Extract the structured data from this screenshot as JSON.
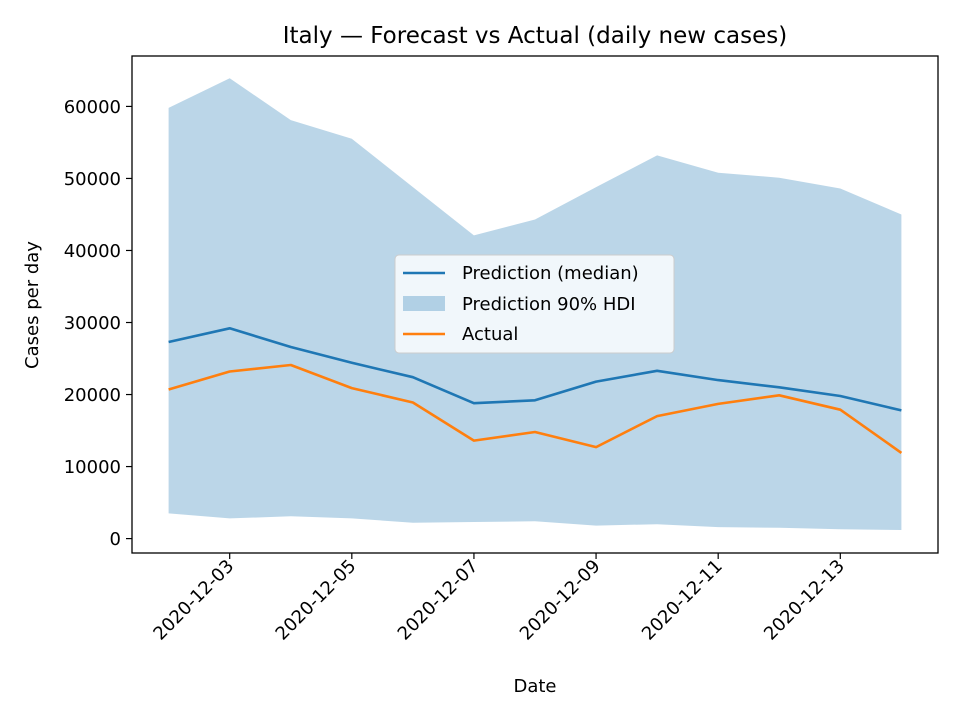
{
  "chart_data": {
    "type": "line",
    "title": "Italy — Forecast vs Actual (daily new cases)",
    "xlabel": "Date",
    "ylabel": "Cases per day",
    "x": [
      "2020-12-02",
      "2020-12-03",
      "2020-12-04",
      "2020-12-05",
      "2020-12-06",
      "2020-12-07",
      "2020-12-08",
      "2020-12-09",
      "2020-12-10",
      "2020-12-11",
      "2020-12-12",
      "2020-12-13",
      "2020-12-14"
    ],
    "xticks": [
      "2020-12-03",
      "2020-12-05",
      "2020-12-07",
      "2020-12-09",
      "2020-12-11",
      "2020-12-13"
    ],
    "xlim": [
      "2020-12-01",
      "2020-12-14"
    ],
    "ylim": [
      -2000,
      67000
    ],
    "yticks": [
      0,
      10000,
      20000,
      30000,
      40000,
      50000,
      60000
    ],
    "ytick_labels": [
      "0",
      "10000",
      "20000",
      "30000",
      "40000",
      "50000",
      "60000"
    ],
    "grid": false,
    "legend_position": "center",
    "series": [
      {
        "name": "Prediction (median)",
        "kind": "line",
        "color": "#1f77b4",
        "values": [
          27300,
          29200,
          26600,
          24400,
          22400,
          18800,
          19200,
          21800,
          23300,
          22000,
          21000,
          19800,
          17800
        ]
      },
      {
        "name": "Prediction 90% HDI",
        "kind": "band",
        "color": "#1f77b4",
        "lower": [
          3500,
          2800,
          3100,
          2800,
          2200,
          2300,
          2400,
          1800,
          2000,
          1600,
          1500,
          1300,
          1200
        ],
        "upper": [
          59800,
          63900,
          58100,
          55500,
          48800,
          42100,
          44300,
          48800,
          53200,
          50800,
          50100,
          48600,
          45000
        ]
      },
      {
        "name": "Actual",
        "kind": "line",
        "color": "#ff7f0e",
        "values": [
          20700,
          23200,
          24100,
          20900,
          18900,
          13600,
          14800,
          12700,
          17000,
          18700,
          19900,
          17900,
          11900
        ]
      }
    ]
  }
}
